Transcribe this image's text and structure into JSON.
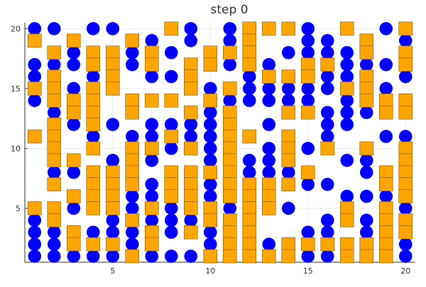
{
  "chart_data": {
    "type": "scatter",
    "title": "step 0",
    "xlabel": "",
    "ylabel": "",
    "xlim": [
      0.5,
      20.5
    ],
    "ylim": [
      0.5,
      20.5
    ],
    "xticks": [
      5,
      10,
      15,
      20
    ],
    "yticks": [
      5,
      10,
      15,
      20
    ],
    "grid": true,
    "legend": "none",
    "colors": {
      "circle": "#0000ff",
      "square": "#ffa500",
      "square_edge": "#8a5a00",
      "axis": "#333333",
      "grid": "#ececec"
    },
    "series": [
      {
        "marker": "circle",
        "points": [
          [
            1,
            20
          ],
          [
            2,
            20
          ],
          [
            4,
            20
          ],
          [
            5,
            20
          ],
          [
            9,
            20
          ],
          [
            11,
            20
          ],
          [
            15,
            20
          ],
          [
            17,
            20
          ],
          [
            19,
            20
          ],
          [
            7,
            19
          ],
          [
            9,
            19
          ],
          [
            11,
            19
          ],
          [
            15,
            19
          ],
          [
            16,
            19
          ],
          [
            20,
            19
          ],
          [
            3,
            18
          ],
          [
            6,
            18
          ],
          [
            8,
            18
          ],
          [
            14,
            18
          ],
          [
            15,
            18
          ],
          [
            16,
            18
          ],
          [
            17,
            18
          ],
          [
            1,
            17
          ],
          [
            2,
            17
          ],
          [
            3,
            17
          ],
          [
            6,
            17
          ],
          [
            11,
            17
          ],
          [
            13,
            17
          ],
          [
            17,
            17
          ],
          [
            18,
            17
          ],
          [
            19,
            17
          ],
          [
            1,
            16
          ],
          [
            4,
            16
          ],
          [
            7,
            16
          ],
          [
            8,
            16
          ],
          [
            12,
            16
          ],
          [
            16,
            16
          ],
          [
            17,
            16
          ],
          [
            20,
            16
          ],
          [
            3,
            15
          ],
          [
            10,
            15
          ],
          [
            12,
            15
          ],
          [
            13,
            15
          ],
          [
            14,
            15
          ],
          [
            15,
            15
          ],
          [
            16,
            15
          ],
          [
            19,
            15
          ],
          [
            1,
            14
          ],
          [
            11,
            14
          ],
          [
            12,
            14
          ],
          [
            13,
            14
          ],
          [
            14,
            14
          ],
          [
            15,
            14
          ],
          [
            17,
            14
          ],
          [
            2,
            13
          ],
          [
            10,
            13
          ],
          [
            16,
            13
          ],
          [
            17,
            13
          ],
          [
            18,
            13
          ],
          [
            3,
            12
          ],
          [
            5,
            12
          ],
          [
            7,
            12
          ],
          [
            8,
            12
          ],
          [
            9,
            12
          ],
          [
            10,
            12
          ],
          [
            11,
            12
          ],
          [
            13,
            12
          ],
          [
            16,
            12
          ],
          [
            17,
            12
          ],
          [
            4,
            11
          ],
          [
            6,
            11
          ],
          [
            7,
            11
          ],
          [
            9,
            11
          ],
          [
            10,
            11
          ],
          [
            16,
            11
          ],
          [
            19,
            11
          ],
          [
            20,
            11
          ],
          [
            8,
            10
          ],
          [
            10,
            10
          ],
          [
            13,
            10
          ],
          [
            15,
            10
          ],
          [
            5,
            9
          ],
          [
            7,
            9
          ],
          [
            10,
            9
          ],
          [
            12,
            9
          ],
          [
            13,
            9
          ],
          [
            17,
            9
          ],
          [
            18,
            9
          ],
          [
            2,
            8
          ],
          [
            3,
            8
          ],
          [
            12,
            8
          ],
          [
            13,
            8
          ],
          [
            14,
            8
          ],
          [
            18,
            8
          ],
          [
            7,
            7
          ],
          [
            10,
            7
          ],
          [
            15,
            7
          ],
          [
            16,
            7
          ],
          [
            6,
            6
          ],
          [
            7,
            6
          ],
          [
            10,
            6
          ],
          [
            17,
            6
          ],
          [
            18,
            6
          ],
          [
            19,
            6
          ],
          [
            1,
            5
          ],
          [
            3,
            5
          ],
          [
            6,
            5
          ],
          [
            8,
            5
          ],
          [
            11,
            5
          ],
          [
            14,
            5
          ],
          [
            20,
            5
          ],
          [
            1,
            4
          ],
          [
            2,
            4
          ],
          [
            5,
            4
          ],
          [
            7,
            4
          ],
          [
            8,
            4
          ],
          [
            9,
            4
          ],
          [
            16,
            4
          ],
          [
            18,
            4
          ],
          [
            1,
            3
          ],
          [
            2,
            3
          ],
          [
            4,
            3
          ],
          [
            5,
            3
          ],
          [
            6,
            3
          ],
          [
            8,
            3
          ],
          [
            10,
            3
          ],
          [
            15,
            3
          ],
          [
            16,
            3
          ],
          [
            18,
            3
          ],
          [
            1,
            2
          ],
          [
            2,
            2
          ],
          [
            6,
            2
          ],
          [
            10,
            2
          ],
          [
            13,
            2
          ],
          [
            20,
            2
          ],
          [
            1,
            1
          ],
          [
            2,
            1
          ],
          [
            3,
            1
          ],
          [
            4,
            1
          ],
          [
            5,
            1
          ],
          [
            7,
            1
          ],
          [
            8,
            1
          ],
          [
            9,
            1
          ],
          [
            15,
            1
          ],
          [
            16,
            1
          ],
          [
            20,
            1
          ]
        ]
      },
      {
        "marker": "square",
        "points": [
          [
            8,
            20
          ],
          [
            12,
            20
          ],
          [
            13,
            20
          ],
          [
            14,
            20
          ],
          [
            17,
            20
          ],
          [
            20,
            20
          ],
          [
            1,
            19
          ],
          [
            3,
            19
          ],
          [
            6,
            19
          ],
          [
            12,
            19
          ],
          [
            18,
            19
          ],
          [
            2,
            18
          ],
          [
            4,
            18
          ],
          [
            5,
            18
          ],
          [
            7,
            18
          ],
          [
            10,
            18
          ],
          [
            11,
            18
          ],
          [
            12,
            18
          ],
          [
            18,
            18
          ],
          [
            20,
            18
          ],
          [
            4,
            17
          ],
          [
            5,
            17
          ],
          [
            7,
            17
          ],
          [
            9,
            17
          ],
          [
            10,
            17
          ],
          [
            12,
            17
          ],
          [
            15,
            17
          ],
          [
            16,
            17
          ],
          [
            20,
            17
          ],
          [
            2,
            16
          ],
          [
            5,
            16
          ],
          [
            9,
            16
          ],
          [
            13,
            16
          ],
          [
            14,
            16
          ],
          [
            15,
            16
          ],
          [
            18,
            16
          ],
          [
            1,
            15
          ],
          [
            2,
            15
          ],
          [
            4,
            15
          ],
          [
            5,
            15
          ],
          [
            9,
            15
          ],
          [
            11,
            15
          ],
          [
            17,
            15
          ],
          [
            18,
            15
          ],
          [
            2,
            14
          ],
          [
            3,
            14
          ],
          [
            4,
            14
          ],
          [
            6,
            14
          ],
          [
            7,
            14
          ],
          [
            8,
            14
          ],
          [
            10,
            14
          ],
          [
            18,
            14
          ],
          [
            19,
            14
          ],
          [
            20,
            14
          ],
          [
            3,
            13
          ],
          [
            4,
            13
          ],
          [
            6,
            13
          ],
          [
            9,
            13
          ],
          [
            11,
            13
          ],
          [
            14,
            13
          ],
          [
            15,
            13
          ],
          [
            19,
            13
          ],
          [
            20,
            13
          ],
          [
            2,
            12
          ],
          [
            4,
            12
          ],
          [
            11,
            12
          ],
          [
            1,
            11
          ],
          [
            2,
            11
          ],
          [
            8,
            11
          ],
          [
            11,
            11
          ],
          [
            12,
            11
          ],
          [
            14,
            11
          ],
          [
            2,
            10
          ],
          [
            4,
            10
          ],
          [
            6,
            10
          ],
          [
            7,
            10
          ],
          [
            9,
            10
          ],
          [
            11,
            10
          ],
          [
            14,
            10
          ],
          [
            16,
            10
          ],
          [
            18,
            10
          ],
          [
            20,
            10
          ],
          [
            2,
            9
          ],
          [
            3,
            9
          ],
          [
            6,
            9
          ],
          [
            11,
            9
          ],
          [
            14,
            9
          ],
          [
            20,
            9
          ],
          [
            4,
            8
          ],
          [
            5,
            8
          ],
          [
            6,
            8
          ],
          [
            8,
            8
          ],
          [
            9,
            8
          ],
          [
            10,
            8
          ],
          [
            11,
            8
          ],
          [
            15,
            8
          ],
          [
            19,
            8
          ],
          [
            20,
            8
          ],
          [
            2,
            7
          ],
          [
            4,
            7
          ],
          [
            5,
            7
          ],
          [
            6,
            7
          ],
          [
            8,
            7
          ],
          [
            9,
            7
          ],
          [
            11,
            7
          ],
          [
            12,
            7
          ],
          [
            13,
            7
          ],
          [
            14,
            7
          ],
          [
            19,
            7
          ],
          [
            20,
            7
          ],
          [
            3,
            6
          ],
          [
            4,
            6
          ],
          [
            5,
            6
          ],
          [
            8,
            6
          ],
          [
            9,
            6
          ],
          [
            11,
            6
          ],
          [
            12,
            6
          ],
          [
            13,
            6
          ],
          [
            20,
            6
          ],
          [
            1,
            5
          ],
          [
            2,
            5
          ],
          [
            4,
            5
          ],
          [
            5,
            5
          ],
          [
            7,
            5
          ],
          [
            9,
            5
          ],
          [
            10,
            5
          ],
          [
            12,
            5
          ],
          [
            13,
            5
          ],
          [
            17,
            5
          ],
          [
            19,
            5
          ],
          [
            2,
            4
          ],
          [
            6,
            4
          ],
          [
            10,
            4
          ],
          [
            11,
            4
          ],
          [
            12,
            4
          ],
          [
            17,
            4
          ],
          [
            19,
            4
          ],
          [
            20,
            4
          ],
          [
            3,
            3
          ],
          [
            7,
            3
          ],
          [
            9,
            3
          ],
          [
            11,
            3
          ],
          [
            12,
            3
          ],
          [
            19,
            3
          ],
          [
            20,
            3
          ],
          [
            3,
            2
          ],
          [
            4,
            2
          ],
          [
            5,
            2
          ],
          [
            7,
            2
          ],
          [
            11,
            2
          ],
          [
            12,
            2
          ],
          [
            14,
            2
          ],
          [
            15,
            2
          ],
          [
            16,
            2
          ],
          [
            17,
            2
          ],
          [
            18,
            2
          ],
          [
            19,
            2
          ],
          [
            6,
            1
          ],
          [
            10,
            1
          ],
          [
            11,
            1
          ],
          [
            12,
            1
          ],
          [
            13,
            1
          ],
          [
            14,
            1
          ],
          [
            17,
            1
          ],
          [
            18,
            1
          ],
          [
            19,
            1
          ]
        ]
      }
    ]
  }
}
